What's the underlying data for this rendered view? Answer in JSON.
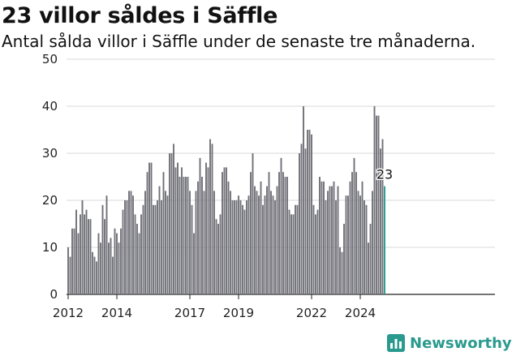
{
  "title": "23 villor såldes i Säffle",
  "subtitle": "Antal sålda villor i Säffle under de senaste tre månaderna.",
  "brand": {
    "name": "Newsworthy",
    "icon": "bar-chart-icon",
    "color": "#2a9a8e"
  },
  "chart_data": {
    "type": "bar",
    "title": "23 villor såldes i Säffle",
    "subtitle": "Antal sålda villor i Säffle under de senaste tre månaderna.",
    "xlabel": "",
    "ylabel": "",
    "ylim": [
      0,
      50
    ],
    "yticks": [
      0,
      10,
      20,
      30,
      40,
      50
    ],
    "xticks": [
      "2012",
      "2014",
      "2017",
      "2019",
      "2022",
      "2024"
    ],
    "grid": true,
    "bar_color": "#707078",
    "highlight_color": "#2a9a8e",
    "last_value_label": "23",
    "start": "2012-01",
    "values": [
      10,
      8,
      14,
      14,
      18,
      13,
      17,
      20,
      17,
      18,
      16,
      16,
      9,
      8,
      7,
      13,
      11,
      19,
      16,
      21,
      11,
      12,
      8,
      14,
      13,
      11,
      14,
      18,
      20,
      20,
      22,
      22,
      21,
      17,
      15,
      13,
      17,
      19,
      22,
      26,
      28,
      28,
      19,
      19,
      20,
      23,
      20,
      26,
      22,
      21,
      30,
      30,
      32,
      27,
      28,
      25,
      27,
      25,
      25,
      25,
      22,
      19,
      13,
      22,
      24,
      29,
      25,
      22,
      28,
      27,
      33,
      32,
      22,
      16,
      15,
      17,
      26,
      27,
      27,
      24,
      22,
      20,
      20,
      20,
      21,
      20,
      19,
      18,
      20,
      21,
      26,
      30,
      23,
      22,
      21,
      24,
      19,
      21,
      23,
      26,
      22,
      21,
      20,
      23,
      26,
      29,
      26,
      25,
      25,
      18,
      17,
      17,
      19,
      19,
      30,
      32,
      40,
      31,
      35,
      35,
      34,
      19,
      17,
      18,
      25,
      24,
      24,
      20,
      22,
      23,
      23,
      24,
      20,
      23,
      10,
      9,
      15,
      21,
      21,
      24,
      26,
      29,
      26,
      22,
      21,
      24,
      20,
      19,
      11,
      15,
      22,
      40,
      38,
      38,
      31,
      33,
      23
    ]
  }
}
